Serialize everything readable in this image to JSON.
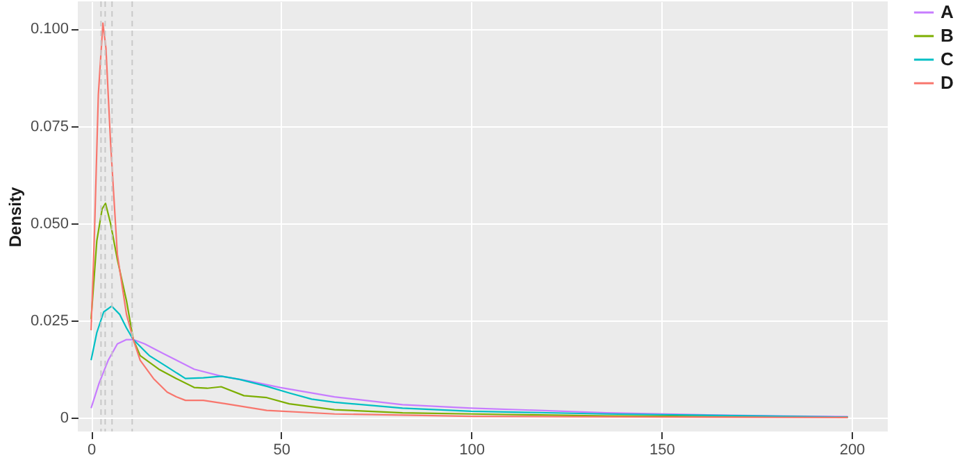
{
  "chart_data": {
    "type": "line",
    "ylabel": "Density",
    "series": [
      {
        "name": "A",
        "color": "#c77cff",
        "x": [
          0,
          2.1,
          4.5,
          6.9,
          9.3,
          11.1,
          14.1,
          20,
          27.1,
          34.3,
          41.4,
          49.7,
          64,
          81.9,
          100,
          117.9,
          135.5,
          160,
          180,
          199
        ],
        "values": [
          0.0025,
          0.0089,
          0.0148,
          0.019,
          0.0201,
          0.0201,
          0.019,
          0.016,
          0.0125,
          0.0107,
          0.0095,
          0.0078,
          0.0054,
          0.0034,
          0.0025,
          0.0019,
          0.0013,
          0.0008,
          0.0005,
          0.0003
        ]
      },
      {
        "name": "B",
        "color": "#7cae00",
        "x": [
          0,
          1.5,
          2.9,
          3.8,
          5.1,
          6.9,
          9.3,
          11.1,
          12.9,
          17.8,
          22.4,
          27.1,
          30.5,
          34.2,
          40.2,
          46.2,
          52.1,
          64,
          81.9,
          100,
          135.5,
          199
        ],
        "values": [
          0.0254,
          0.0455,
          0.0537,
          0.0551,
          0.05,
          0.0407,
          0.0301,
          0.0201,
          0.016,
          0.0125,
          0.0101,
          0.0078,
          0.0076,
          0.008,
          0.0057,
          0.0052,
          0.0036,
          0.0021,
          0.0013,
          0.001,
          0.0005,
          0.0002
        ]
      },
      {
        "name": "C",
        "color": "#00bfc4",
        "x": [
          0,
          1.5,
          3.3,
          5.4,
          7.5,
          9.3,
          11.1,
          15.3,
          20,
          24.8,
          29.5,
          34.3,
          39,
          46.2,
          52.1,
          58,
          64,
          81.9,
          100,
          135.5,
          199
        ],
        "values": [
          0.0148,
          0.0219,
          0.0272,
          0.0287,
          0.0266,
          0.0231,
          0.0201,
          0.016,
          0.0131,
          0.0101,
          0.0103,
          0.0107,
          0.0099,
          0.0081,
          0.0064,
          0.0048,
          0.004,
          0.0025,
          0.0017,
          0.001,
          0.0002
        ]
      },
      {
        "name": "D",
        "color": "#f8766d",
        "x": [
          0,
          0.9,
          1.9,
          3.1,
          3.9,
          5.1,
          6.9,
          9.3,
          11.1,
          12.9,
          16.4,
          20,
          22.4,
          24.8,
          29.5,
          35.5,
          46.2,
          64,
          100,
          150,
          199
        ],
        "values": [
          0.0225,
          0.048,
          0.083,
          0.1014,
          0.095,
          0.071,
          0.042,
          0.0266,
          0.0201,
          0.0148,
          0.0101,
          0.0066,
          0.0054,
          0.0045,
          0.0045,
          0.0036,
          0.0019,
          0.001,
          0.0004,
          0.0002,
          0.0001
        ]
      }
    ],
    "xlim": [
      -3.5,
      209.5
    ],
    "xticks": [
      0,
      50,
      100,
      150,
      200
    ],
    "ylim": [
      -0.0035,
      0.107
    ],
    "yticks": [
      0,
      {
        "value": 0.025,
        "label": "0.025"
      },
      {
        "value": 0.05,
        "label": "0.050"
      },
      {
        "value": 0.075,
        "label": "0.075"
      },
      {
        "value": 0.1,
        "label": "0.100"
      }
    ],
    "ref_lines": [
      {
        "axis": "x",
        "value": 2.6,
        "color": "#c8c8c8",
        "line_style": "dashed"
      },
      {
        "axis": "x",
        "value": 3.7,
        "color": "#c8c8c8",
        "line_style": "dashed"
      },
      {
        "axis": "x",
        "value": 5.5,
        "color": "#c8c8c8",
        "line_style": "dashed"
      },
      {
        "axis": "x",
        "value": 10.8,
        "color": "#c8c8c8",
        "line_style": "dashed"
      }
    ],
    "grid": true,
    "legend": "right",
    "line_style": "solid",
    "marker": "none"
  }
}
